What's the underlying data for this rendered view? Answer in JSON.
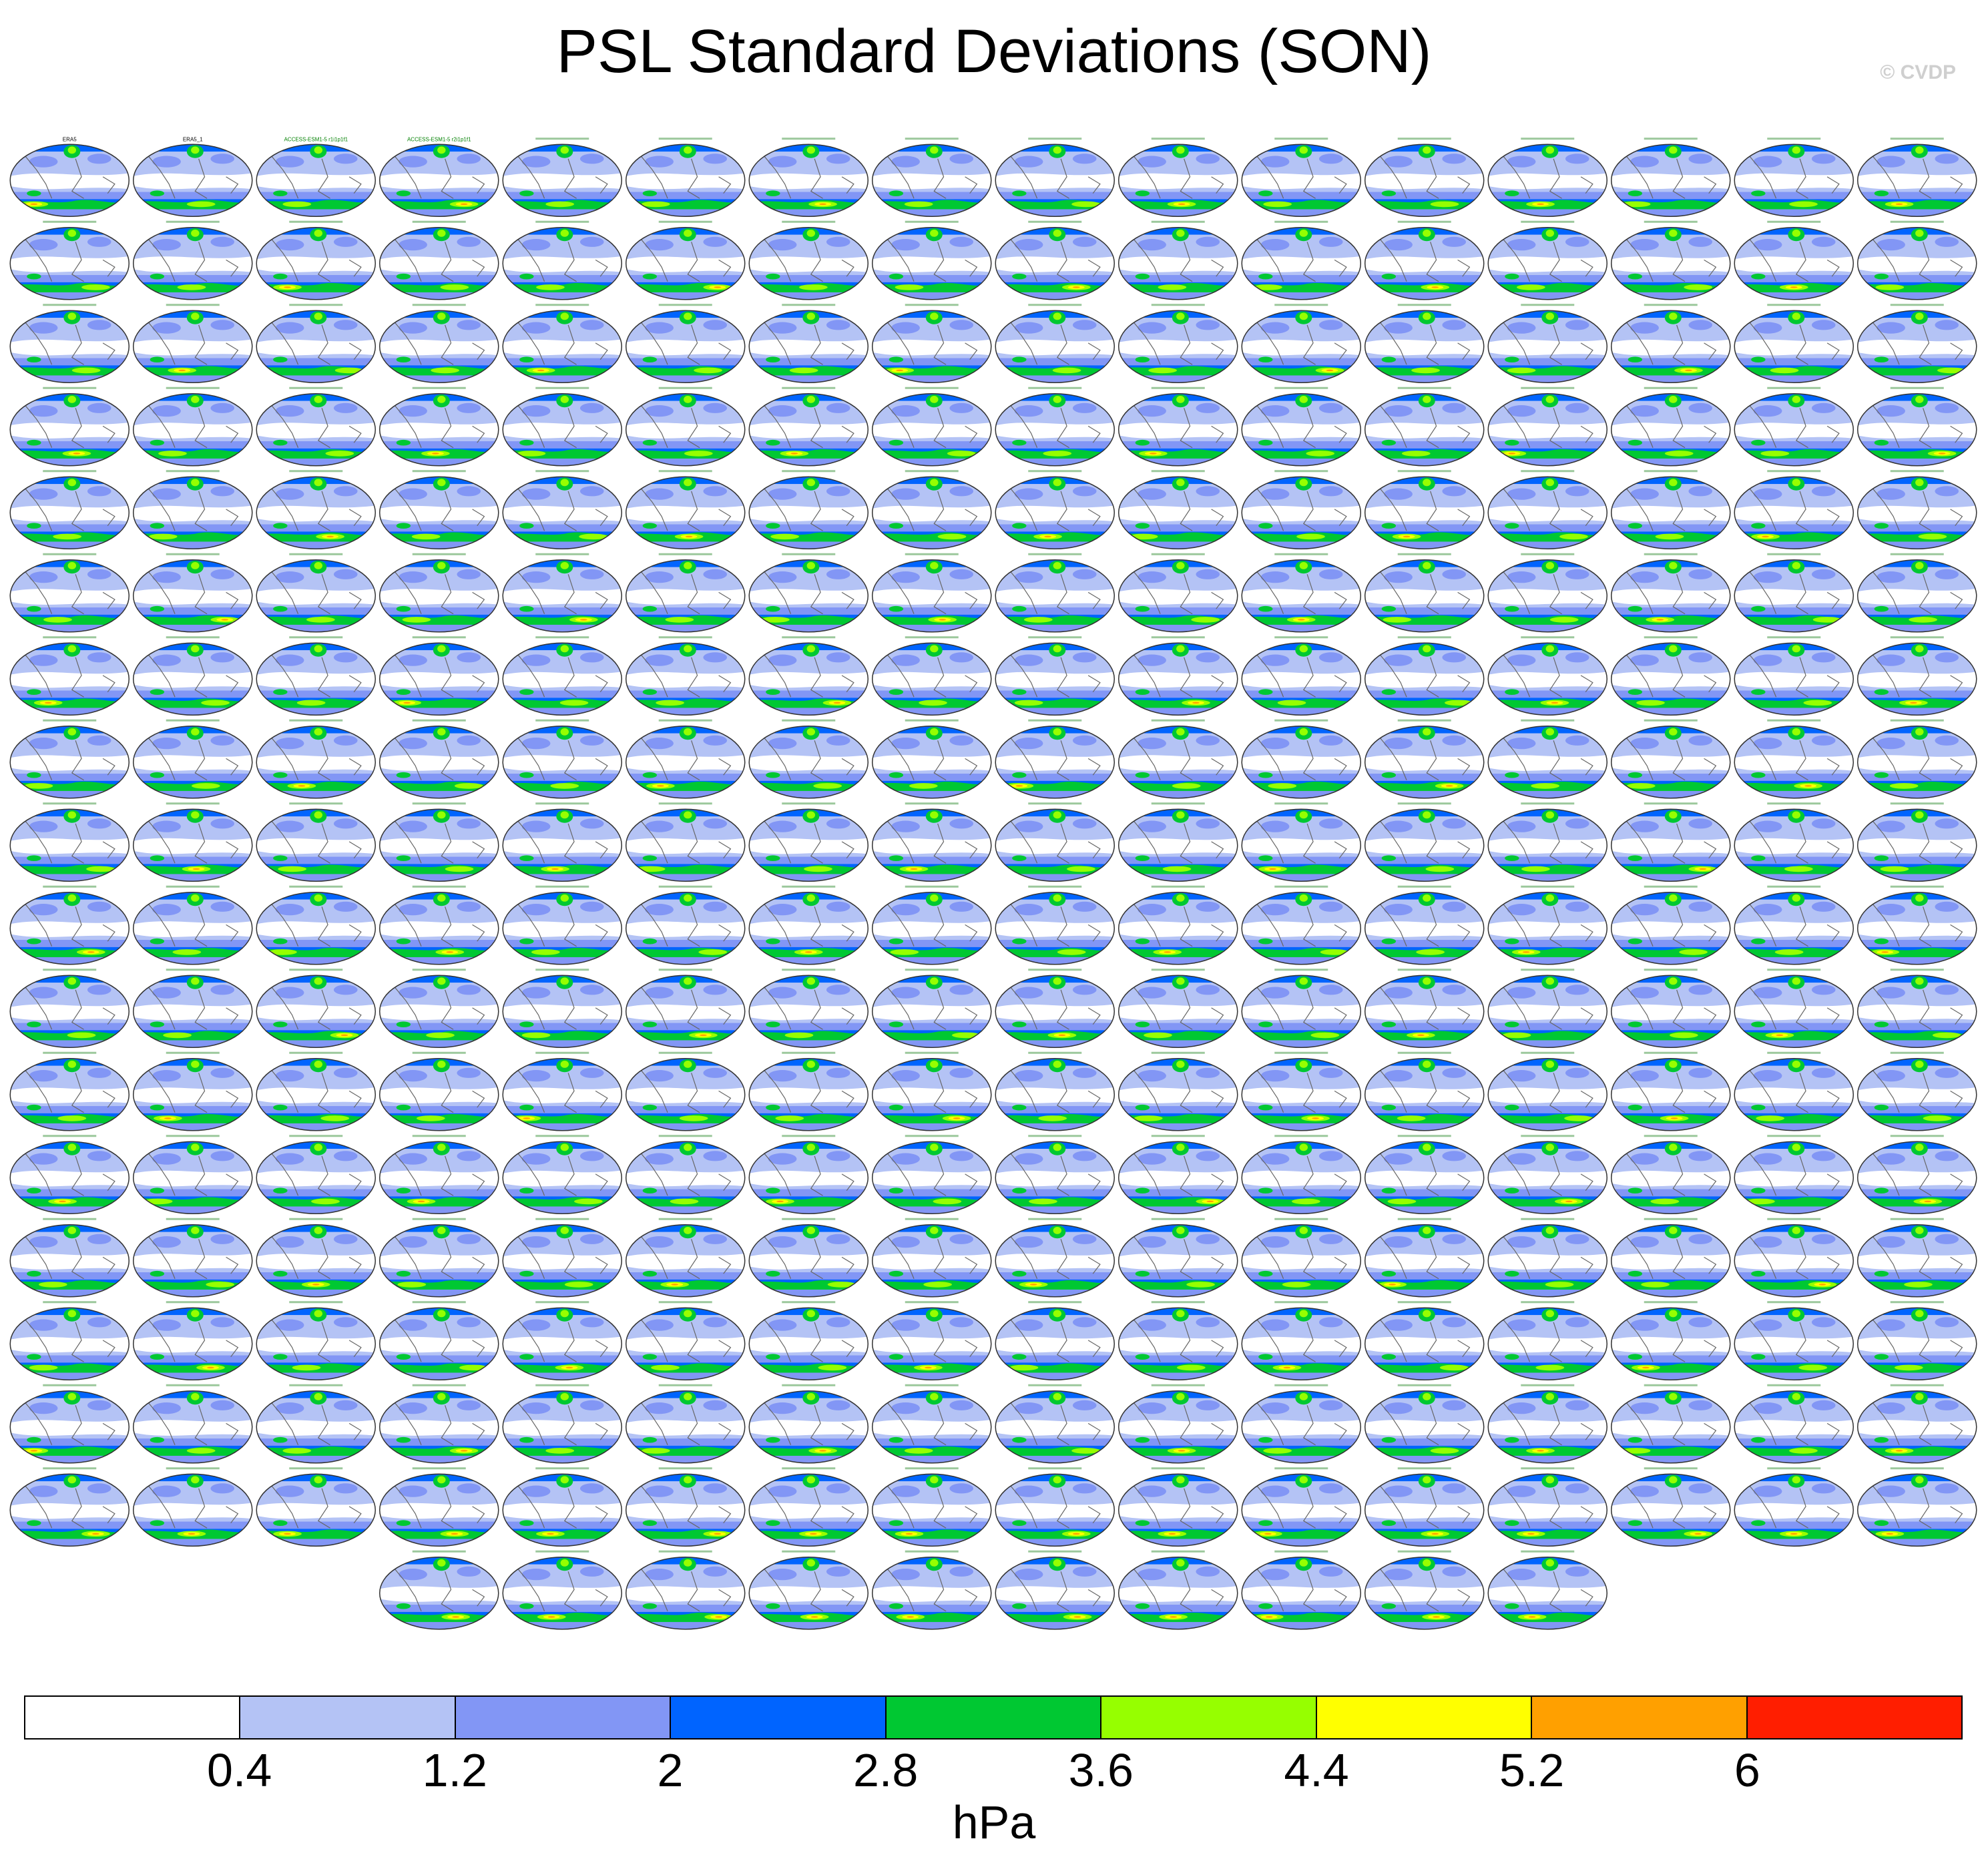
{
  "title": "PSL Standard Deviations (SON)",
  "watermark": "© CVDP",
  "chart_data": {
    "type": "heatmap",
    "description_of_layout": "grid of global map panels",
    "panel_rows": 18,
    "panel_columns": 16,
    "panel_count": 282,
    "panel_titles_first": [
      "ERA5",
      "ERA5_1",
      "ACCESS-ESM1-5 r1i1p1f1",
      "ACCESS-ESM1-5 r2i1p1f1"
    ],
    "colorbar": {
      "levels": [
        "0.4",
        "1.2",
        "2",
        "2.8",
        "3.6",
        "4.4",
        "5.2",
        "6"
      ],
      "colors": [
        "#ffffff",
        "#b4c3f5",
        "#8296f5",
        "#0064ff",
        "#00c832",
        "#96ff00",
        "#ffff00",
        "#ffa000",
        "#ff1e00"
      ],
      "units": "hPa"
    }
  }
}
